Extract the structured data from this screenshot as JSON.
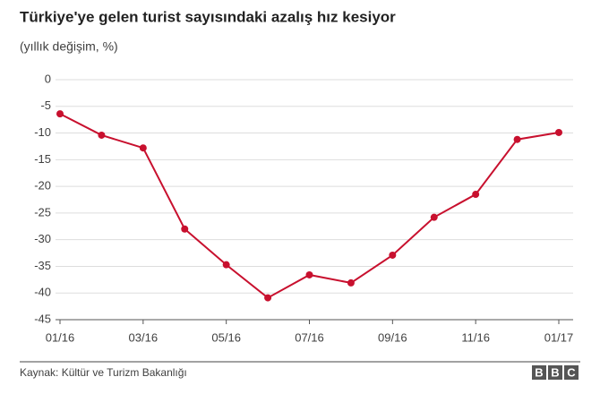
{
  "chart_data": {
    "type": "line",
    "title": "Türkiye'ye gelen turist sayısındaki azalış hız kesiyor",
    "subtitle": "(yıllık değişim, %)",
    "categories": [
      "01/16",
      null,
      "03/16",
      null,
      "05/16",
      null,
      "07/16",
      null,
      "09/16",
      null,
      "11/16",
      null,
      "01/17"
    ],
    "series": [
      {
        "color": "#c8102e",
        "values": [
          -6.4,
          -10.4,
          -12.8,
          -28.0,
          -34.7,
          -40.9,
          -36.6,
          -38.1,
          -32.9,
          -25.8,
          -21.5,
          -11.2,
          -9.9
        ]
      }
    ],
    "ylim": [
      -45,
      0
    ],
    "yticks": [
      0,
      -5,
      -10,
      -15,
      -20,
      -25,
      -30,
      -35,
      -40,
      -45
    ],
    "grid": true,
    "source": "Kaynak: Kültür ve Turizm Bakanlığı",
    "logo": [
      "B",
      "B",
      "C"
    ]
  }
}
